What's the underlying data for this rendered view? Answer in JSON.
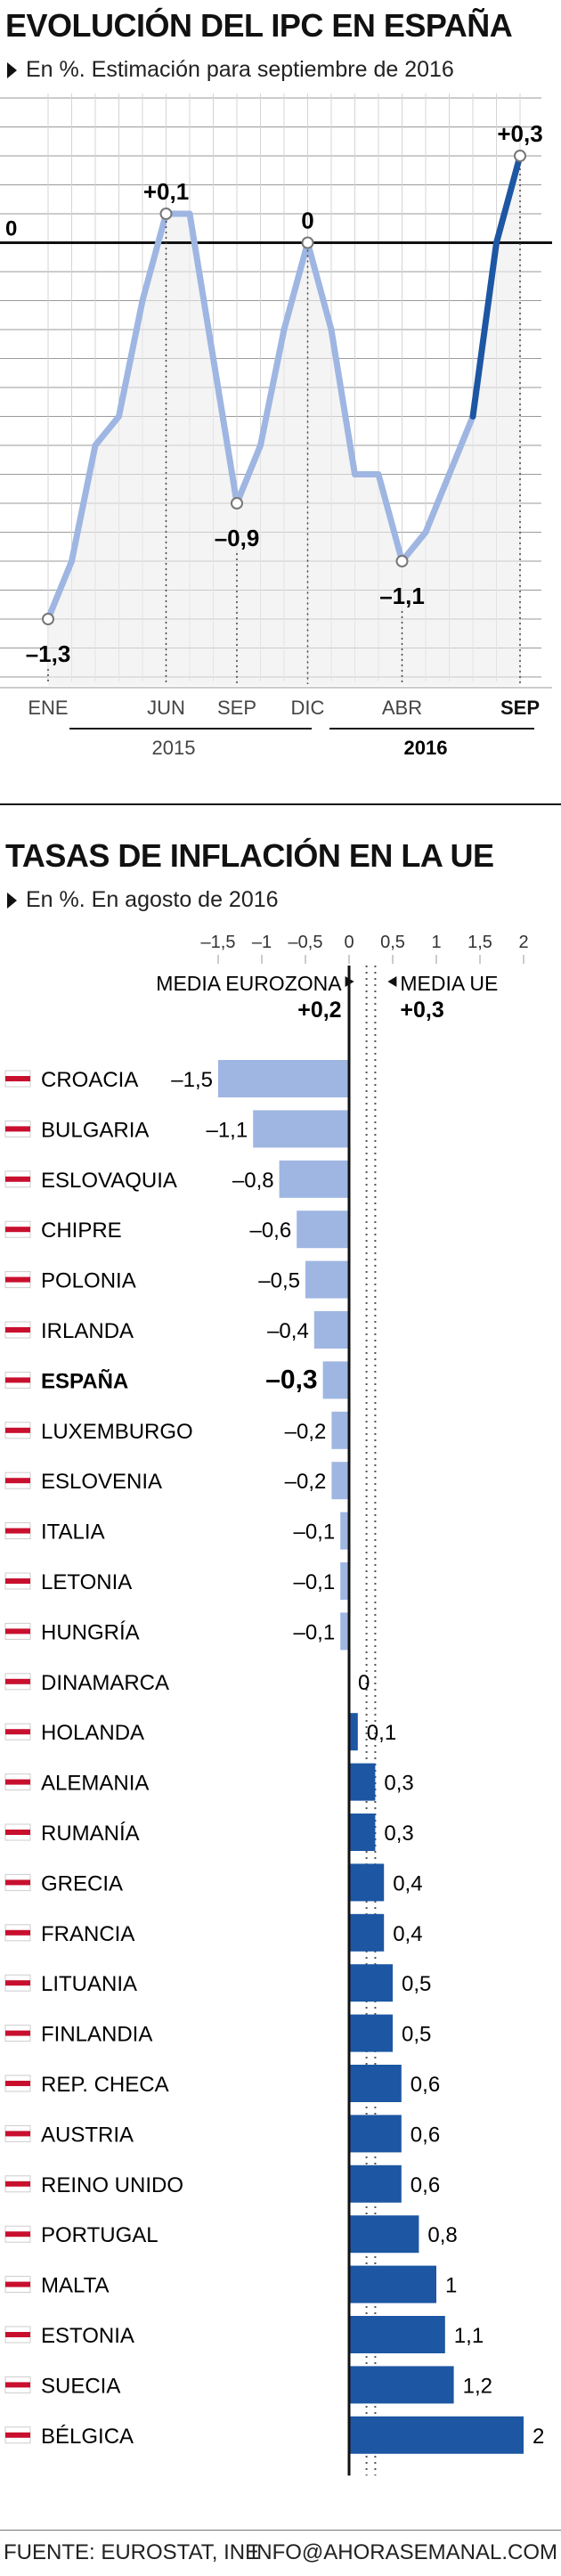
{
  "colors": {
    "light": "#9fb6e2",
    "dark": "#1d56a3",
    "axis": "#111111",
    "grid": "#888888"
  },
  "chart_data": [
    {
      "type": "line",
      "title": "EVOLUCIÓN DEL IPC EN ESPAÑA",
      "subtitle": "En %. Estimación para septiembre de 2016",
      "x_labels": [
        "ENE",
        "JUN",
        "SEP",
        "DIC",
        "ABR",
        "SEP"
      ],
      "x_groups": [
        "2015",
        "2016"
      ],
      "x": [
        "2015-01",
        "2015-02",
        "2015-03",
        "2015-04",
        "2015-05",
        "2015-06",
        "2015-07",
        "2015-08",
        "2015-09",
        "2015-10",
        "2015-11",
        "2015-12",
        "2016-01",
        "2016-02",
        "2016-03",
        "2016-04",
        "2016-05",
        "2016-06",
        "2016-07",
        "2016-08",
        "2016-09"
      ],
      "values": [
        -1.3,
        -1.1,
        -0.7,
        -0.6,
        -0.2,
        0.1,
        0.1,
        -0.4,
        -0.9,
        -0.7,
        -0.3,
        0.0,
        -0.3,
        -0.8,
        -0.8,
        -1.1,
        -1.0,
        -0.8,
        -0.6,
        0.0,
        0.3
      ],
      "annotations": [
        {
          "x": "2015-01",
          "label": "-1,3"
        },
        {
          "x": "2015-06",
          "label": "+0,1"
        },
        {
          "x": "2015-09",
          "label": "-0,9"
        },
        {
          "x": "2015-12",
          "label": "0"
        },
        {
          "x": "2016-04",
          "label": "-1,1"
        },
        {
          "x": "2016-09",
          "label": "+0,3"
        }
      ],
      "zero_label": "0",
      "ylim": [
        -1.5,
        0.5
      ],
      "grid": true
    },
    {
      "type": "bar",
      "orientation": "horizontal",
      "title": "TASAS DE INFLACIÓN EN LA UE",
      "subtitle": "En %. En agosto de 2016",
      "x_ticks": [
        "-1,5",
        "-1",
        "-0,5",
        "0",
        "0,5",
        "1",
        "1,5",
        "2"
      ],
      "xlim": [
        -1.5,
        2.0
      ],
      "reference_lines": [
        {
          "name": "MEDIA EUROZONA",
          "value": 0.2,
          "label": "+0,2"
        },
        {
          "name": "MEDIA UE",
          "value": 0.3,
          "label": "+0,3"
        }
      ],
      "highlight": "ESPAÑA",
      "categories": [
        "CROACIA",
        "BULGARIA",
        "ESLOVAQUIA",
        "CHIPRE",
        "POLONIA",
        "IRLANDA",
        "ESPAÑA",
        "LUXEMBURGO",
        "ESLOVENIA",
        "ITALIA",
        "LETONIA",
        "HUNGRÍA",
        "DINAMARCA",
        "HOLANDA",
        "ALEMANIA",
        "RUMANÍA",
        "GRECIA",
        "FRANCIA",
        "LITUANIA",
        "FINLANDIA",
        "REP. CHECA",
        "AUSTRIA",
        "REINO UNIDO",
        "PORTUGAL",
        "MALTA",
        "ESTONIA",
        "SUECIA",
        "BÉLGICA"
      ],
      "values": [
        -1.5,
        -1.1,
        -0.8,
        -0.6,
        -0.5,
        -0.4,
        -0.3,
        -0.2,
        -0.2,
        -0.1,
        -0.1,
        -0.1,
        0.0,
        0.1,
        0.3,
        0.3,
        0.4,
        0.4,
        0.5,
        0.5,
        0.6,
        0.6,
        0.6,
        0.8,
        1.0,
        1.1,
        1.2,
        2.0
      ],
      "labels": [
        "-1,5",
        "-1,1",
        "-0,8",
        "-0,6",
        "-0,5",
        "-0,4",
        "-0,3",
        "-0,2",
        "-0,2",
        "-0,1",
        "-0,1",
        "-0,1",
        "0",
        "0,1",
        "0,3",
        "0,3",
        "0,4",
        "0,4",
        "0,5",
        "0,5",
        "0,6",
        "0,6",
        "0,6",
        "0,8",
        "1",
        "1,1",
        "1,2",
        "2"
      ]
    }
  ],
  "footer": {
    "source": "FUENTE: EUROSTAT, INE",
    "contact": "INFO@AHORASEMANAL.COM"
  }
}
